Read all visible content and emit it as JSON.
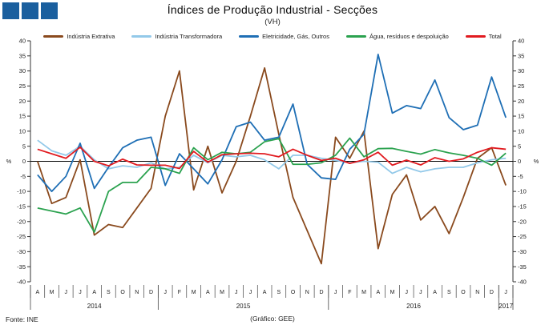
{
  "header": {
    "title": "Índices de Produção Industrial - Secções",
    "subtitle": "(VH)"
  },
  "logo": {
    "color": "#1a5f9e",
    "square_count": 3
  },
  "footer": {
    "source": "Fonte: INE",
    "credit": "(Gráfico: GEE)"
  },
  "axis": {
    "percent_symbol": "%"
  },
  "chart_data": {
    "type": "line",
    "title": "Índices de Produção Industrial - Secções",
    "subtitle": "(VH)",
    "ylabel": "%",
    "ylim": [
      -40,
      40
    ],
    "ytick_step": 5,
    "grid": false,
    "legend_position": "top",
    "x_months": [
      "A",
      "M",
      "J",
      "J",
      "A",
      "S",
      "O",
      "N",
      "D",
      "J",
      "F",
      "M",
      "A",
      "M",
      "J",
      "J",
      "A",
      "S",
      "O",
      "N",
      "D",
      "J",
      "F",
      "M",
      "A",
      "M",
      "J",
      "J",
      "A",
      "S",
      "O",
      "N",
      "D",
      "J"
    ],
    "x_years": [
      {
        "label": "2014",
        "months": 9
      },
      {
        "label": "2015",
        "months": 12
      },
      {
        "label": "2016",
        "months": 12
      },
      {
        "label": "2017",
        "months": 1
      }
    ],
    "series": [
      {
        "name": "Indústria Extrativa",
        "color": "#8a4a1e",
        "values": [
          0,
          -14,
          -12,
          0.5,
          -24.5,
          -21,
          -22,
          -15.5,
          -9,
          15,
          30,
          -9.5,
          5,
          -10.5,
          0,
          15,
          31,
          9,
          -12,
          -23,
          -34,
          8,
          1,
          10,
          -29,
          -11,
          -4.5,
          -19.5,
          -15,
          -24,
          -12,
          1,
          4.5,
          -8
        ]
      },
      {
        "name": "Indústria Transformadora",
        "color": "#93c9e9",
        "values": [
          7,
          3.5,
          2,
          5,
          0.5,
          -2.5,
          -1.5,
          -2,
          -0.5,
          -2.5,
          -2,
          2,
          -0.5,
          2,
          1.5,
          2,
          0.5,
          -2.5,
          2,
          2,
          1,
          0.3,
          -0.5,
          0,
          -0.3,
          -4,
          -2,
          -3.5,
          -2.5,
          -2,
          -2,
          -0.5,
          0.5,
          1
        ]
      },
      {
        "name": "Eletricidade, Gás, Outros",
        "color": "#1f6fb5",
        "values": [
          -4.5,
          -10,
          -5,
          6,
          -9,
          -2,
          4.5,
          7,
          8,
          -8,
          2.5,
          -2.5,
          -7.5,
          0.5,
          11.5,
          13,
          7,
          8,
          19,
          -1,
          -5.5,
          -6,
          4,
          9,
          35.5,
          16,
          18.5,
          17.5,
          27,
          14.5,
          10.5,
          12,
          28,
          14.5
        ]
      },
      {
        "name": "Água, resíduos e despoluição",
        "color": "#2ba24f",
        "values": [
          -15.5,
          -16.5,
          -17.5,
          -15.5,
          -23.5,
          -10,
          -7,
          -7,
          -2,
          -2.5,
          -4,
          4.5,
          0.5,
          3,
          2.5,
          3,
          6.5,
          7.5,
          -1,
          -1,
          -0.5,
          2,
          7.7,
          1.5,
          4.2,
          4.3,
          3.3,
          2.4,
          3.9,
          2.8,
          2,
          1,
          -1.3,
          2.7
        ]
      },
      {
        "name": "Total",
        "color": "#e11b20",
        "values": [
          4,
          2.5,
          1,
          4.7,
          0,
          -1.5,
          0.7,
          -1.2,
          -1.3,
          -1.3,
          -2.4,
          3.3,
          -0.3,
          2.2,
          2.5,
          2.7,
          2.5,
          1.5,
          4,
          2,
          0.3,
          1,
          -0.7,
          0.5,
          3,
          -1.3,
          0.4,
          -1.2,
          1.2,
          0,
          0.8,
          3,
          4.5,
          4
        ]
      }
    ]
  }
}
